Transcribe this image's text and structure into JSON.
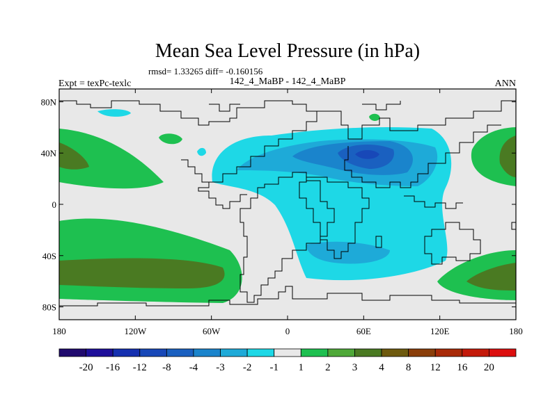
{
  "chart_data": {
    "type": "heatmap",
    "title": "Mean Sea Level Pressure (in hPa)",
    "stats": "rmsd= 1.33265 diff= -0.160156",
    "subtitle": "142_4_MaBP - 142_4_MaBP",
    "left_label": "Expt = texPc-texlc",
    "right_label": "ANN",
    "x_ticks": [
      {
        "value": -180,
        "label": "180"
      },
      {
        "value": -120,
        "label": "120W"
      },
      {
        "value": -60,
        "label": "60W"
      },
      {
        "value": 0,
        "label": "0"
      },
      {
        "value": 60,
        "label": "60E"
      },
      {
        "value": 120,
        "label": "120E"
      },
      {
        "value": 180,
        "label": "180"
      }
    ],
    "y_ticks": [
      {
        "value": 80,
        "label": "80N"
      },
      {
        "value": 40,
        "label": "40N"
      },
      {
        "value": 0,
        "label": "0"
      },
      {
        "value": -40,
        "label": "40S"
      },
      {
        "value": -80,
        "label": "80S"
      }
    ],
    "xlim": [
      -180,
      180
    ],
    "ylim": [
      -90,
      90
    ],
    "colorbar": {
      "levels": [
        "-20",
        "-16",
        "-12",
        "-8",
        "-4",
        "-3",
        "-2",
        "-1",
        "1",
        "2",
        "3",
        "4",
        "8",
        "12",
        "16",
        "20"
      ],
      "colors": [
        "#200a6e",
        "#1e0f9a",
        "#1530b0",
        "#1848b8",
        "#1a60c0",
        "#1a84cc",
        "#1eaad8",
        "#1ed8e6",
        "#e8e8e8",
        "#1ec050",
        "#4ea838",
        "#4a7a22",
        "#6e5a0e",
        "#8a3e0a",
        "#a82a08",
        "#c41a0a",
        "#dc0f0f"
      ]
    }
  }
}
